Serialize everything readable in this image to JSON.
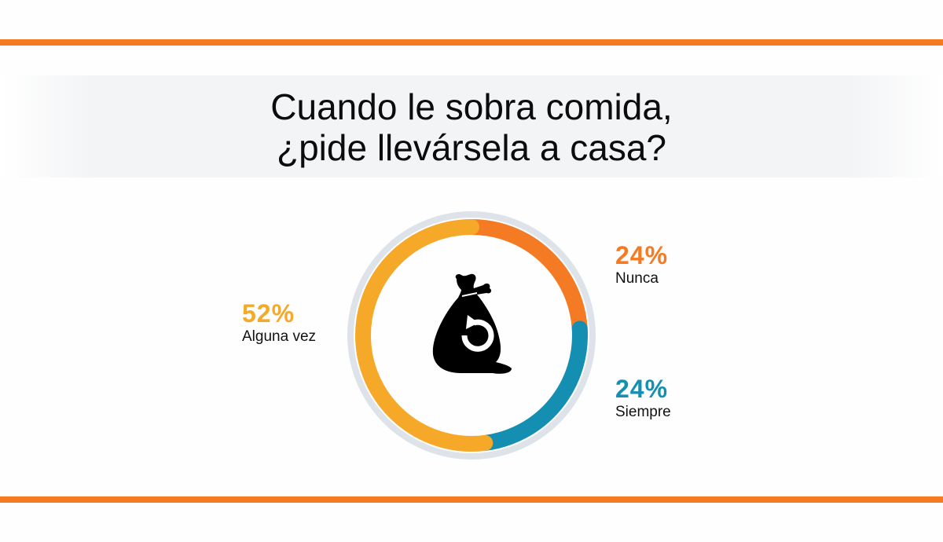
{
  "title": {
    "line1": "Cuando le sobra comida,",
    "line2": "¿pide llevársela a casa?"
  },
  "colors": {
    "rule": "#f47a23",
    "nunca": "#f47a23",
    "siempre": "#148fb1",
    "alguna": "#f6a829",
    "outer_ring": "#dde3e8",
    "icon": "#000000"
  },
  "center_icon": "food-bag-recycle-icon",
  "legend": {
    "nunca": {
      "pct": "24%",
      "label": "Nunca"
    },
    "siempre": {
      "pct": "24%",
      "label": "Siempre"
    },
    "alguna": {
      "pct": "52%",
      "label": "Alguna vez"
    }
  },
  "chart_data": {
    "type": "pie",
    "subtype": "donut",
    "title": "Cuando le sobra comida, ¿pide llevársela a casa?",
    "categories": [
      "Nunca",
      "Siempre",
      "Alguna vez"
    ],
    "values": [
      24,
      24,
      52
    ],
    "unit": "%",
    "colors": [
      "#f47a23",
      "#148fb1",
      "#f6a829"
    ],
    "start_angle": "12 o'clock",
    "direction": "clockwise",
    "legend_position": "labels beside segments"
  }
}
